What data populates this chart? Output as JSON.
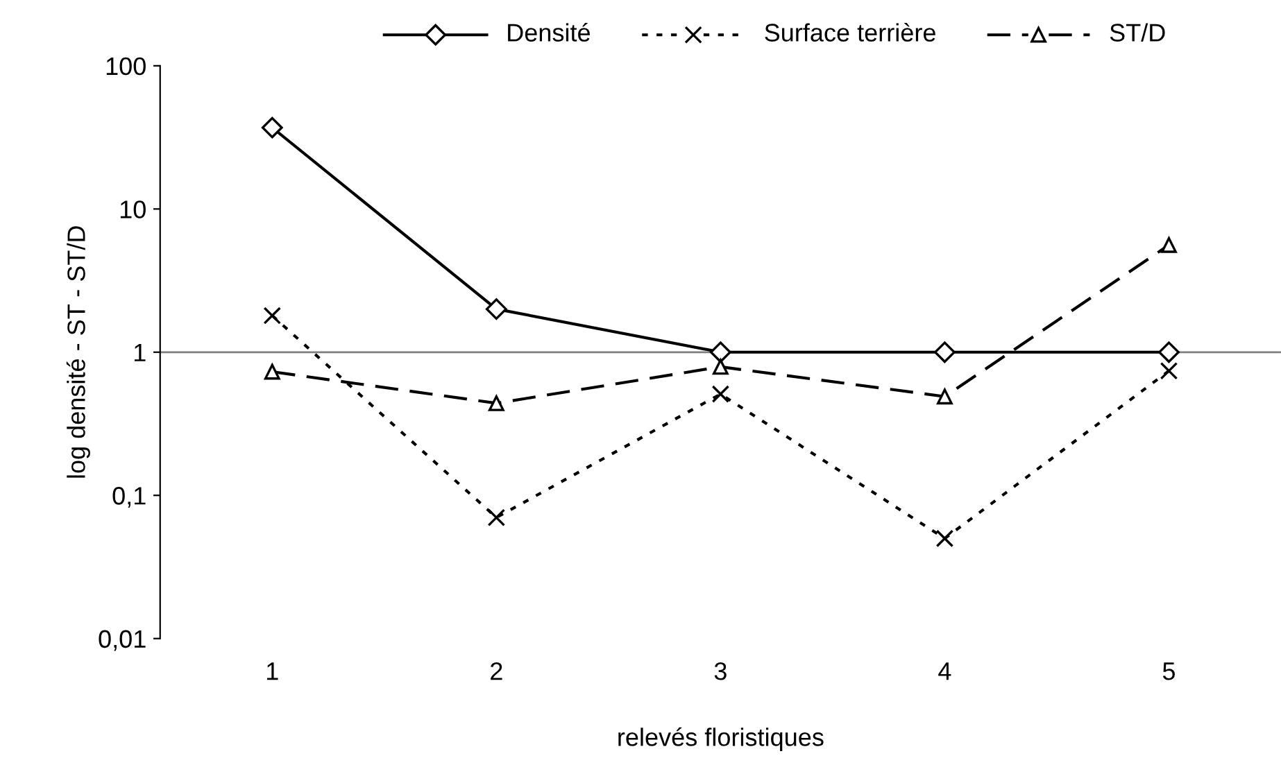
{
  "chart_data": {
    "type": "line",
    "xlabel": "relevés floristiques",
    "ylabel": "log densité - ST - ST/D",
    "categories": [
      "1",
      "2",
      "3",
      "4",
      "5"
    ],
    "series": [
      {
        "name": "Densité",
        "color": "#000000",
        "marker": "diamond",
        "line_style": "solid",
        "values": [
          37,
          2.0,
          1,
          1,
          1
        ]
      },
      {
        "name": "Surface terrière",
        "color": "#000000",
        "marker": "cross",
        "line_style": "dotted",
        "values": [
          1.8,
          0.07,
          0.51,
          0.05,
          0.74
        ]
      },
      {
        "name": "ST/D",
        "color": "#000000",
        "marker": "triangle",
        "line_style": "dashed",
        "values": [
          0.73,
          0.44,
          0.79,
          0.49,
          5.6
        ]
      }
    ],
    "log": "y",
    "ylim": [
      0.01,
      100
    ],
    "yticks": [
      {
        "value": 0.01,
        "label": "0,01"
      },
      {
        "value": 0.1,
        "label": "0,1"
      },
      1,
      10,
      100
    ],
    "ref_lines": [
      {
        "axis": "y",
        "value": 1,
        "color": "#808080"
      }
    ],
    "grid": false,
    "legend": "top"
  }
}
